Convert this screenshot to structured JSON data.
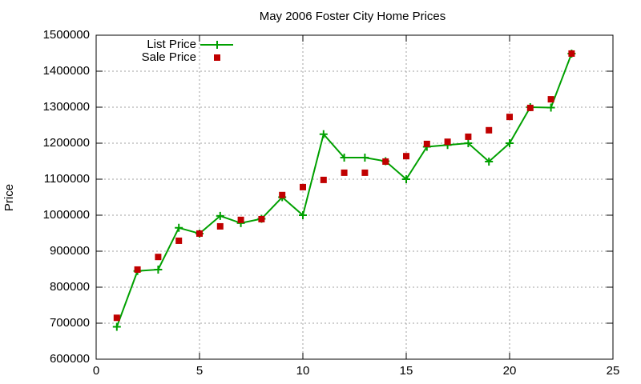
{
  "chart_data": {
    "type": "line",
    "title": "May 2006 Foster City Home Prices",
    "y_label": "Price",
    "x": [
      1,
      2,
      3,
      4,
      5,
      6,
      7,
      8,
      9,
      10,
      11,
      12,
      13,
      14,
      15,
      16,
      17,
      18,
      19,
      20,
      21,
      22,
      23
    ],
    "series": [
      {
        "name": "List Price",
        "color": "#00a000",
        "mode": "lines+markers",
        "values": [
          690000,
          845000,
          849000,
          965000,
          949000,
          998000,
          978000,
          990000,
          1050000,
          1000000,
          1225000,
          1160000,
          1160000,
          1150000,
          1100000,
          1190000,
          1195000,
          1200000,
          1149000,
          1200000,
          1300000,
          1299000,
          1449000
        ]
      },
      {
        "name": "Sale Price",
        "color": "#c00000",
        "mode": "markers",
        "values": [
          715000,
          849000,
          884000,
          929000,
          949000,
          969000,
          987000,
          989000,
          1056000,
          1078000,
          1098000,
          1118000,
          1118000,
          1149000,
          1164000,
          1198000,
          1204000,
          1218000,
          1236000,
          1273000,
          1298000,
          1322000,
          1449000
        ]
      }
    ],
    "xlim": [
      0,
      25
    ],
    "xticks": [
      0,
      5,
      10,
      15,
      20,
      25
    ],
    "ylim": [
      600000,
      1500000
    ],
    "yticks": [
      600000,
      700000,
      800000,
      900000,
      1000000,
      1100000,
      1200000,
      1300000,
      1400000,
      1500000
    ],
    "grid": true,
    "legend": "top-left"
  }
}
